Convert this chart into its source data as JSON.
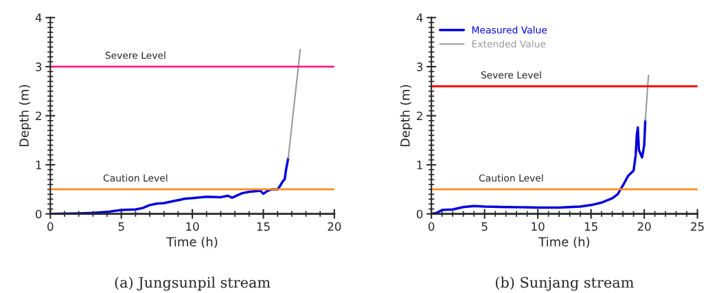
{
  "chart_data": [
    {
      "type": "line",
      "title": "(a) Jungsunpil stream",
      "xlabel": "Time (h)",
      "ylabel": "Depth (m)",
      "xlim": [
        0,
        20
      ],
      "ylim": [
        0,
        4
      ],
      "xticks": [
        0,
        5,
        10,
        15,
        20
      ],
      "yticks": [
        0,
        1,
        2,
        3,
        4
      ],
      "grid": false,
      "legend": false,
      "series": [
        {
          "color": "#0000dd",
          "x": [
            0,
            2,
            3,
            4,
            5,
            6,
            6.5,
            7,
            7.5,
            8,
            9,
            9.5,
            10,
            11,
            12,
            12.5,
            12.8,
            13.5,
            14,
            14.8,
            15,
            15.3,
            15.6,
            16,
            16.2,
            16.4,
            16.5,
            16.6,
            16.75
          ],
          "values": [
            0,
            0.01,
            0.02,
            0.04,
            0.08,
            0.09,
            0.12,
            0.18,
            0.21,
            0.22,
            0.28,
            0.31,
            0.32,
            0.35,
            0.34,
            0.37,
            0.33,
            0.42,
            0.45,
            0.47,
            0.41,
            0.47,
            0.5,
            0.5,
            0.58,
            0.68,
            0.7,
            0.9,
            1.13
          ]
        },
        {
          "color": "#999999",
          "x": [
            16.75,
            17.6
          ],
          "values": [
            1.13,
            3.35
          ]
        }
      ],
      "ref_lines": [
        {
          "axis": "y",
          "value": 3,
          "label": "Severe Level",
          "color": "#ff1a8c"
        },
        {
          "axis": "y",
          "value": 0.5,
          "label": "Caution Level",
          "color": "#ff8c1a"
        }
      ]
    },
    {
      "type": "line",
      "title": "(b) Sunjang stream",
      "xlabel": "Time (h)",
      "ylabel": "Depth (m)",
      "xlim": [
        0,
        25
      ],
      "ylim": [
        0,
        4
      ],
      "xticks": [
        0,
        5,
        10,
        15,
        20,
        25
      ],
      "yticks": [
        0,
        1,
        2,
        3,
        4
      ],
      "grid": false,
      "legend": "top left",
      "series": [
        {
          "name": "Measured Value",
          "color": "#0000dd",
          "x": [
            0,
            0.5,
            1,
            2,
            3,
            4,
            5,
            7,
            10,
            12,
            14,
            15,
            16,
            17,
            17.5,
            18,
            18.5,
            19,
            19.2,
            19.3,
            19.4,
            19.5,
            19.7,
            19.8,
            20,
            20.1
          ],
          "values": [
            0,
            0.02,
            0.08,
            0.09,
            0.14,
            0.16,
            0.15,
            0.14,
            0.13,
            0.13,
            0.15,
            0.18,
            0.23,
            0.32,
            0.4,
            0.58,
            0.78,
            0.88,
            1.2,
            1.6,
            1.76,
            1.3,
            1.2,
            1.15,
            1.4,
            1.9
          ]
        },
        {
          "name": "Extended Value",
          "color": "#999999",
          "x": [
            20.1,
            20.4
          ],
          "values": [
            1.9,
            2.82
          ]
        }
      ],
      "ref_lines": [
        {
          "axis": "y",
          "value": 2.6,
          "label": "Severe Level",
          "color": "#ff0000"
        },
        {
          "axis": "y",
          "value": 0.5,
          "label": "Caution Level",
          "color": "#ff8c1a"
        }
      ]
    }
  ]
}
